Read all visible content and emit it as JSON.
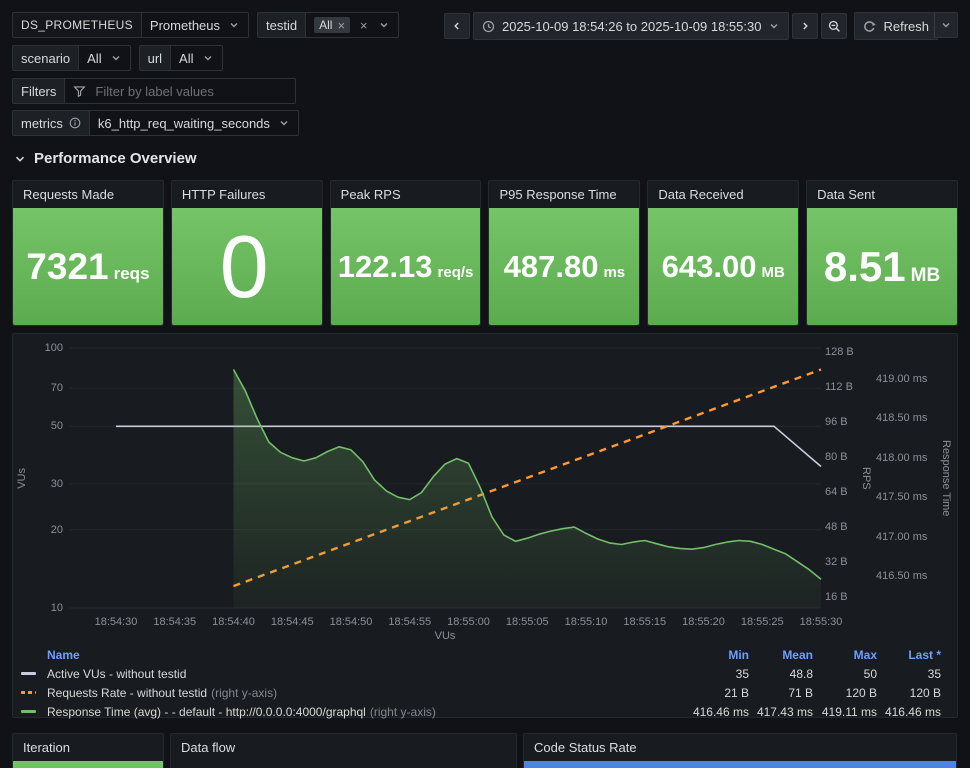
{
  "toolbar": {
    "ds": {
      "label": "DS_PROMETHEUS",
      "value": "Prometheus"
    },
    "testid": {
      "label": "testid",
      "selected": "All"
    },
    "scenario": {
      "label": "scenario",
      "value": "All"
    },
    "url": {
      "label": "url",
      "value": "All"
    },
    "filters": {
      "label": "Filters",
      "placeholder": "Filter by label values"
    },
    "metrics": {
      "label": "metrics",
      "value": "k6_http_req_waiting_seconds"
    },
    "time_picker": {
      "range": "2025-10-09 18:54:26 to 2025-10-09 18:55:30"
    },
    "refresh": {
      "label": "Refresh"
    }
  },
  "section": {
    "title": "Performance Overview"
  },
  "stats": [
    {
      "title": "Requests Made",
      "value": "7321",
      "unit": "reqs"
    },
    {
      "title": "HTTP Failures",
      "value": "0",
      "unit": ""
    },
    {
      "title": "Peak RPS",
      "value": "122.13",
      "unit": "req/s"
    },
    {
      "title": "P95 Response Time",
      "value": "487.80",
      "unit": "ms"
    },
    {
      "title": "Data Received",
      "value": "643.00",
      "unit": "MB"
    },
    {
      "title": "Data Sent",
      "value": "8.51",
      "unit": "MB"
    }
  ],
  "bottom_panels": {
    "iteration": "Iteration",
    "data_flow": "Data flow",
    "code_status": "Code Status Rate"
  },
  "colors": {
    "background": "#111217",
    "panel": "#181b1f",
    "green": "#73bf69",
    "orange": "#ff9830",
    "blue": "#3274d9",
    "legend_header_blue": "#6e9fff",
    "active_vus_line": "#ccccdc"
  },
  "chart_data": {
    "type": "line",
    "time_window": {
      "from": "18:54:26",
      "to": "18:55:30"
    },
    "x_range_seconds": [
      26,
      90
    ],
    "xlabel": "VUs",
    "x_ticks": [
      {
        "t": 30,
        "label": "18:54:30"
      },
      {
        "t": 35,
        "label": "18:54:35"
      },
      {
        "t": 40,
        "label": "18:54:40"
      },
      {
        "t": 45,
        "label": "18:54:45"
      },
      {
        "t": 50,
        "label": "18:54:50"
      },
      {
        "t": 55,
        "label": "18:54:55"
      },
      {
        "t": 60,
        "label": "18:55:00"
      },
      {
        "t": 65,
        "label": "18:55:05"
      },
      {
        "t": 70,
        "label": "18:55:10"
      },
      {
        "t": 75,
        "label": "18:55:15"
      },
      {
        "t": 80,
        "label": "18:55:20"
      },
      {
        "t": 85,
        "label": "18:55:25"
      },
      {
        "t": 90,
        "label": "18:55:30"
      }
    ],
    "axes": {
      "left": {
        "label": "VUs",
        "scale": "log",
        "min": 10,
        "max": 100,
        "ticks": [
          {
            "v": 100,
            "label": "100"
          },
          {
            "v": 70,
            "label": "70"
          },
          {
            "v": 50,
            "label": "50"
          },
          {
            "v": 30,
            "label": "30"
          },
          {
            "v": 20,
            "label": "20"
          },
          {
            "v": 10,
            "label": "10"
          }
        ]
      },
      "rps": {
        "label": "RPS",
        "min": 16,
        "max": 128,
        "ticks": [
          {
            "v": 128,
            "label": "128 B"
          },
          {
            "v": 112,
            "label": "112 B"
          },
          {
            "v": 96,
            "label": "96 B"
          },
          {
            "v": 80,
            "label": "80 B"
          },
          {
            "v": 64,
            "label": "64 B"
          },
          {
            "v": 48,
            "label": "48 B"
          },
          {
            "v": 32,
            "label": "32 B"
          },
          {
            "v": 16,
            "label": "16 B"
          }
        ]
      },
      "rt": {
        "label": "Response Time",
        "min": 416.5,
        "max": 419,
        "ticks": [
          {
            "v": 419,
            "label": "419.00 ms"
          },
          {
            "v": 418.5,
            "label": "418.50 ms"
          },
          {
            "v": 418,
            "label": "418.00 ms"
          },
          {
            "v": 417.5,
            "label": "417.50 ms"
          },
          {
            "v": 417,
            "label": "417.00 ms"
          },
          {
            "v": 416.5,
            "label": "416.50 ms"
          }
        ]
      }
    },
    "series": [
      {
        "name": "Active VUs - without testid",
        "axis": "left",
        "color": "#ccccdc",
        "dash": false,
        "fill": false,
        "points": [
          [
            30,
            50
          ],
          [
            86,
            50
          ],
          [
            90,
            35
          ]
        ]
      },
      {
        "name": "Requests Rate - without testid",
        "axis": "rps",
        "color": "#ff9830",
        "dash": true,
        "fill": false,
        "points": [
          [
            40,
            21
          ],
          [
            90,
            120
          ]
        ]
      },
      {
        "name": "Response Time (avg) - - default - http://0.0.0.0:4000/graphql",
        "axis": "rt",
        "color": "#73bf69",
        "dash": false,
        "fill": true,
        "points": [
          [
            40,
            419.12
          ],
          [
            41,
            418.85
          ],
          [
            42,
            418.5
          ],
          [
            43,
            418.2
          ],
          [
            44,
            418.07
          ],
          [
            45,
            418.0
          ],
          [
            46,
            417.96
          ],
          [
            47,
            418.0
          ],
          [
            48,
            418.08
          ],
          [
            49,
            418.14
          ],
          [
            50,
            418.1
          ],
          [
            51,
            417.95
          ],
          [
            52,
            417.72
          ],
          [
            53,
            417.58
          ],
          [
            54,
            417.5
          ],
          [
            55,
            417.47
          ],
          [
            56,
            417.56
          ],
          [
            57,
            417.76
          ],
          [
            58,
            417.92
          ],
          [
            59,
            417.99
          ],
          [
            60,
            417.93
          ],
          [
            61,
            417.62
          ],
          [
            62,
            417.25
          ],
          [
            63,
            417.02
          ],
          [
            64,
            416.94
          ],
          [
            65,
            416.98
          ],
          [
            66,
            417.03
          ],
          [
            67,
            417.07
          ],
          [
            68,
            417.1
          ],
          [
            69,
            417.12
          ],
          [
            70,
            417.04
          ],
          [
            71,
            416.97
          ],
          [
            72,
            416.92
          ],
          [
            73,
            416.9
          ],
          [
            74,
            416.93
          ],
          [
            75,
            416.95
          ],
          [
            76,
            416.91
          ],
          [
            77,
            416.87
          ],
          [
            78,
            416.85
          ],
          [
            79,
            416.84
          ],
          [
            80,
            416.86
          ],
          [
            81,
            416.9
          ],
          [
            82,
            416.93
          ],
          [
            83,
            416.95
          ],
          [
            84,
            416.94
          ],
          [
            85,
            416.9
          ],
          [
            86,
            416.84
          ],
          [
            87,
            416.78
          ],
          [
            88,
            416.68
          ],
          [
            89,
            416.58
          ],
          [
            90,
            416.46
          ]
        ]
      }
    ],
    "legend": {
      "columns": [
        "Name",
        "Min",
        "Mean",
        "Max",
        "Last *"
      ],
      "rows": [
        {
          "name": "Active VUs - without testid",
          "suffix": "",
          "color": "#ccccdc",
          "dash": false,
          "min": "35",
          "mean": "48.8",
          "max": "50",
          "last": "35"
        },
        {
          "name": "Requests Rate - without testid",
          "suffix": "(right y-axis)",
          "color": "#ff9830",
          "dash": true,
          "min": "21 B",
          "mean": "71 B",
          "max": "120 B",
          "last": "120 B"
        },
        {
          "name": "Response Time (avg) - - default - http://0.0.0.0:4000/graphql",
          "suffix": "(right y-axis)",
          "color": "#73bf69",
          "dash": false,
          "min": "416.46 ms",
          "mean": "417.43 ms",
          "max": "419.11 ms",
          "last": "416.46 ms"
        }
      ]
    }
  }
}
